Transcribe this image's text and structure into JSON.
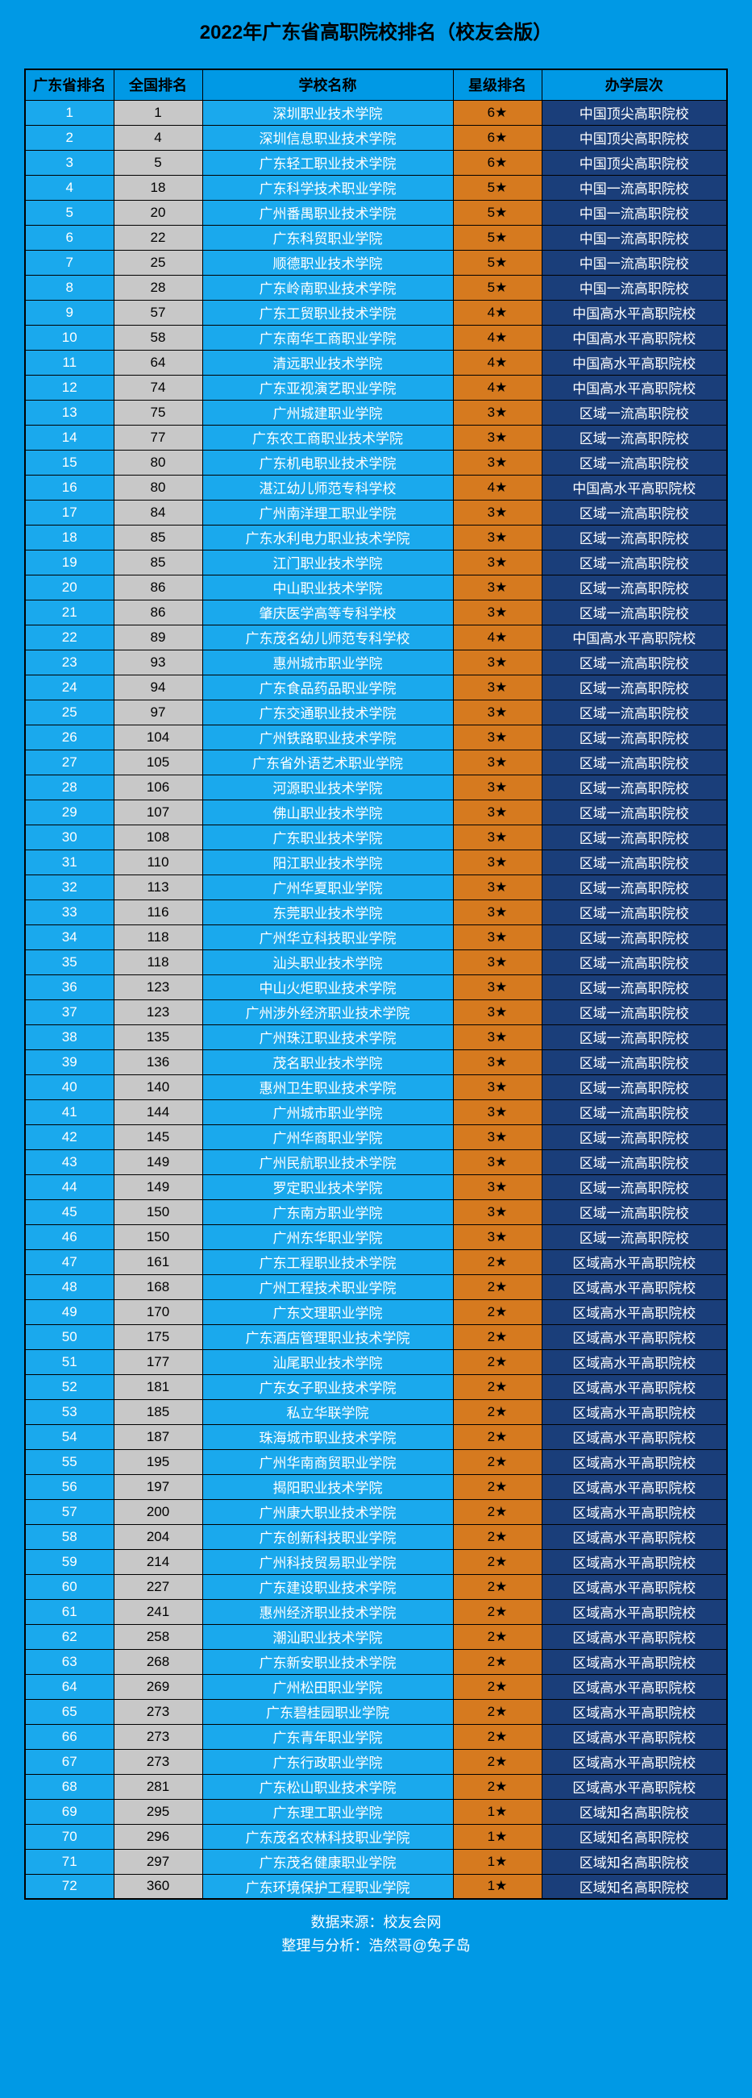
{
  "title": "2022年广东省高职院校排名（校友会版）",
  "columns": [
    "广东省排名",
    "全国排名",
    "学校名称",
    "星级排名",
    "办学层次"
  ],
  "rows": [
    [
      1,
      1,
      "深圳职业技术学院",
      "6★",
      "中国顶尖高职院校"
    ],
    [
      2,
      4,
      "深圳信息职业技术学院",
      "6★",
      "中国顶尖高职院校"
    ],
    [
      3,
      5,
      "广东轻工职业技术学院",
      "6★",
      "中国顶尖高职院校"
    ],
    [
      4,
      18,
      "广东科学技术职业学院",
      "5★",
      "中国一流高职院校"
    ],
    [
      5,
      20,
      "广州番禺职业技术学院",
      "5★",
      "中国一流高职院校"
    ],
    [
      6,
      22,
      "广东科贸职业学院",
      "5★",
      "中国一流高职院校"
    ],
    [
      7,
      25,
      "顺德职业技术学院",
      "5★",
      "中国一流高职院校"
    ],
    [
      8,
      28,
      "广东岭南职业技术学院",
      "5★",
      "中国一流高职院校"
    ],
    [
      9,
      57,
      "广东工贸职业技术学院",
      "4★",
      "中国高水平高职院校"
    ],
    [
      10,
      58,
      "广东南华工商职业学院",
      "4★",
      "中国高水平高职院校"
    ],
    [
      11,
      64,
      "清远职业技术学院",
      "4★",
      "中国高水平高职院校"
    ],
    [
      12,
      74,
      "广东亚视演艺职业学院",
      "4★",
      "中国高水平高职院校"
    ],
    [
      13,
      75,
      "广州城建职业学院",
      "3★",
      "区域一流高职院校"
    ],
    [
      14,
      77,
      "广东农工商职业技术学院",
      "3★",
      "区域一流高职院校"
    ],
    [
      15,
      80,
      "广东机电职业技术学院",
      "3★",
      "区域一流高职院校"
    ],
    [
      16,
      80,
      "湛江幼儿师范专科学校",
      "4★",
      "中国高水平高职院校"
    ],
    [
      17,
      84,
      "广州南洋理工职业学院",
      "3★",
      "区域一流高职院校"
    ],
    [
      18,
      85,
      "广东水利电力职业技术学院",
      "3★",
      "区域一流高职院校"
    ],
    [
      19,
      85,
      "江门职业技术学院",
      "3★",
      "区域一流高职院校"
    ],
    [
      20,
      86,
      "中山职业技术学院",
      "3★",
      "区域一流高职院校"
    ],
    [
      21,
      86,
      "肇庆医学高等专科学校",
      "3★",
      "区域一流高职院校"
    ],
    [
      22,
      89,
      "广东茂名幼儿师范专科学校",
      "4★",
      "中国高水平高职院校"
    ],
    [
      23,
      93,
      "惠州城市职业学院",
      "3★",
      "区域一流高职院校"
    ],
    [
      24,
      94,
      "广东食品药品职业学院",
      "3★",
      "区域一流高职院校"
    ],
    [
      25,
      97,
      "广东交通职业技术学院",
      "3★",
      "区域一流高职院校"
    ],
    [
      26,
      104,
      "广州铁路职业技术学院",
      "3★",
      "区域一流高职院校"
    ],
    [
      27,
      105,
      "广东省外语艺术职业学院",
      "3★",
      "区域一流高职院校"
    ],
    [
      28,
      106,
      "河源职业技术学院",
      "3★",
      "区域一流高职院校"
    ],
    [
      29,
      107,
      "佛山职业技术学院",
      "3★",
      "区域一流高职院校"
    ],
    [
      30,
      108,
      "广东职业技术学院",
      "3★",
      "区域一流高职院校"
    ],
    [
      31,
      110,
      "阳江职业技术学院",
      "3★",
      "区域一流高职院校"
    ],
    [
      32,
      113,
      "广州华夏职业学院",
      "3★",
      "区域一流高职院校"
    ],
    [
      33,
      116,
      "东莞职业技术学院",
      "3★",
      "区域一流高职院校"
    ],
    [
      34,
      118,
      "广州华立科技职业学院",
      "3★",
      "区域一流高职院校"
    ],
    [
      35,
      118,
      "汕头职业技术学院",
      "3★",
      "区域一流高职院校"
    ],
    [
      36,
      123,
      "中山火炬职业技术学院",
      "3★",
      "区域一流高职院校"
    ],
    [
      37,
      123,
      "广州涉外经济职业技术学院",
      "3★",
      "区域一流高职院校"
    ],
    [
      38,
      135,
      "广州珠江职业技术学院",
      "3★",
      "区域一流高职院校"
    ],
    [
      39,
      136,
      "茂名职业技术学院",
      "3★",
      "区域一流高职院校"
    ],
    [
      40,
      140,
      "惠州卫生职业技术学院",
      "3★",
      "区域一流高职院校"
    ],
    [
      41,
      144,
      "广州城市职业学院",
      "3★",
      "区域一流高职院校"
    ],
    [
      42,
      145,
      "广州华商职业学院",
      "3★",
      "区域一流高职院校"
    ],
    [
      43,
      149,
      "广州民航职业技术学院",
      "3★",
      "区域一流高职院校"
    ],
    [
      44,
      149,
      "罗定职业技术学院",
      "3★",
      "区域一流高职院校"
    ],
    [
      45,
      150,
      "广东南方职业学院",
      "3★",
      "区域一流高职院校"
    ],
    [
      46,
      150,
      "广州东华职业学院",
      "3★",
      "区域一流高职院校"
    ],
    [
      47,
      161,
      "广东工程职业技术学院",
      "2★",
      "区域高水平高职院校"
    ],
    [
      48,
      168,
      "广州工程技术职业学院",
      "2★",
      "区域高水平高职院校"
    ],
    [
      49,
      170,
      "广东文理职业学院",
      "2★",
      "区域高水平高职院校"
    ],
    [
      50,
      175,
      "广东酒店管理职业技术学院",
      "2★",
      "区域高水平高职院校"
    ],
    [
      51,
      177,
      "汕尾职业技术学院",
      "2★",
      "区域高水平高职院校"
    ],
    [
      52,
      181,
      "广东女子职业技术学院",
      "2★",
      "区域高水平高职院校"
    ],
    [
      53,
      185,
      "私立华联学院",
      "2★",
      "区域高水平高职院校"
    ],
    [
      54,
      187,
      "珠海城市职业技术学院",
      "2★",
      "区域高水平高职院校"
    ],
    [
      55,
      195,
      "广州华南商贸职业学院",
      "2★",
      "区域高水平高职院校"
    ],
    [
      56,
      197,
      "揭阳职业技术学院",
      "2★",
      "区域高水平高职院校"
    ],
    [
      57,
      200,
      "广州康大职业技术学院",
      "2★",
      "区域高水平高职院校"
    ],
    [
      58,
      204,
      "广东创新科技职业学院",
      "2★",
      "区域高水平高职院校"
    ],
    [
      59,
      214,
      "广州科技贸易职业学院",
      "2★",
      "区域高水平高职院校"
    ],
    [
      60,
      227,
      "广东建设职业技术学院",
      "2★",
      "区域高水平高职院校"
    ],
    [
      61,
      241,
      "惠州经济职业技术学院",
      "2★",
      "区域高水平高职院校"
    ],
    [
      62,
      258,
      "潮汕职业技术学院",
      "2★",
      "区域高水平高职院校"
    ],
    [
      63,
      268,
      "广东新安职业技术学院",
      "2★",
      "区域高水平高职院校"
    ],
    [
      64,
      269,
      "广州松田职业学院",
      "2★",
      "区域高水平高职院校"
    ],
    [
      65,
      273,
      "广东碧桂园职业学院",
      "2★",
      "区域高水平高职院校"
    ],
    [
      66,
      273,
      "广东青年职业学院",
      "2★",
      "区域高水平高职院校"
    ],
    [
      67,
      273,
      "广东行政职业学院",
      "2★",
      "区域高水平高职院校"
    ],
    [
      68,
      281,
      "广东松山职业技术学院",
      "2★",
      "区域高水平高职院校"
    ],
    [
      69,
      295,
      "广东理工职业学院",
      "1★",
      "区域知名高职院校"
    ],
    [
      70,
      296,
      "广东茂名农林科技职业学院",
      "1★",
      "区域知名高职院校"
    ],
    [
      71,
      297,
      "广东茂名健康职业学院",
      "1★",
      "区域知名高职院校"
    ],
    [
      72,
      360,
      "广东环境保护工程职业学院",
      "1★",
      "区域知名高职院校"
    ]
  ],
  "footer": {
    "source_label": "数据来源：校友会网",
    "analysis_label": "整理与分析：浩然哥@兔子岛"
  },
  "colors": {
    "page_bg": "#0099e5",
    "prov_bg": "#1aa9ed",
    "nat_bg": "#c8c8c8",
    "name_bg": "#1aa9ed",
    "star_bg": "#d67a1f",
    "tier_bg": "#1a3e7a"
  }
}
